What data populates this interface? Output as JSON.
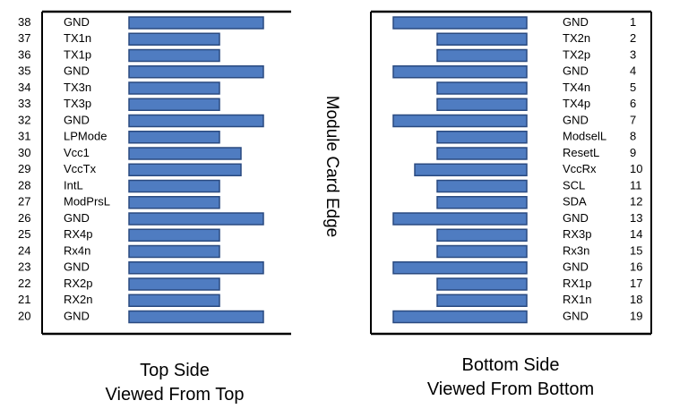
{
  "center_label": "Module Card Edge",
  "top_side": {
    "caption_line1": "Top Side",
    "caption_line2": "Viewed From Top",
    "pins": [
      {
        "num": "38",
        "name": "GND",
        "type": "long"
      },
      {
        "num": "37",
        "name": "TX1n",
        "type": "short"
      },
      {
        "num": "36",
        "name": "TX1p",
        "type": "short"
      },
      {
        "num": "35",
        "name": "GND",
        "type": "long"
      },
      {
        "num": "34",
        "name": "TX3n",
        "type": "short"
      },
      {
        "num": "33",
        "name": "TX3p",
        "type": "short"
      },
      {
        "num": "32",
        "name": "GND",
        "type": "long"
      },
      {
        "num": "31",
        "name": "LPMode",
        "type": "short"
      },
      {
        "num": "30",
        "name": "Vcc1",
        "type": "medium"
      },
      {
        "num": "29",
        "name": "VccTx",
        "type": "medium"
      },
      {
        "num": "28",
        "name": "IntL",
        "type": "short"
      },
      {
        "num": "27",
        "name": "ModPrsL",
        "type": "short"
      },
      {
        "num": "26",
        "name": "GND",
        "type": "long"
      },
      {
        "num": "25",
        "name": "RX4p",
        "type": "short"
      },
      {
        "num": "24",
        "name": "Rx4n",
        "type": "short"
      },
      {
        "num": "23",
        "name": "GND",
        "type": "long"
      },
      {
        "num": "22",
        "name": "RX2p",
        "type": "short"
      },
      {
        "num": "21",
        "name": "RX2n",
        "type": "short"
      },
      {
        "num": "20",
        "name": "GND",
        "type": "long"
      }
    ]
  },
  "bottom_side": {
    "caption_line1": "Bottom Side",
    "caption_line2": "Viewed From Bottom",
    "pins": [
      {
        "num": "1",
        "name": "GND",
        "type": "long"
      },
      {
        "num": "2",
        "name": "TX2n",
        "type": "short"
      },
      {
        "num": "3",
        "name": "TX2p",
        "type": "short"
      },
      {
        "num": "4",
        "name": "GND",
        "type": "long"
      },
      {
        "num": "5",
        "name": "TX4n",
        "type": "short"
      },
      {
        "num": "6",
        "name": "TX4p",
        "type": "short"
      },
      {
        "num": "7",
        "name": "GND",
        "type": "long"
      },
      {
        "num": "8",
        "name": "ModselL",
        "type": "short"
      },
      {
        "num": "9",
        "name": "ResetL",
        "type": "short"
      },
      {
        "num": "10",
        "name": "VccRx",
        "type": "medium"
      },
      {
        "num": "11",
        "name": "SCL",
        "type": "short"
      },
      {
        "num": "12",
        "name": "SDA",
        "type": "short"
      },
      {
        "num": "13",
        "name": "GND",
        "type": "long"
      },
      {
        "num": "14",
        "name": "RX3p",
        "type": "short"
      },
      {
        "num": "15",
        "name": "Rx3n",
        "type": "short"
      },
      {
        "num": "16",
        "name": "GND",
        "type": "long"
      },
      {
        "num": "17",
        "name": "RX1p",
        "type": "short"
      },
      {
        "num": "18",
        "name": "RX1n",
        "type": "short"
      },
      {
        "num": "19",
        "name": "GND",
        "type": "long"
      }
    ]
  },
  "colors": {
    "pad_fill": "#4f7cc1",
    "pad_stroke": "#2a4a80",
    "frame": "#000000"
  }
}
